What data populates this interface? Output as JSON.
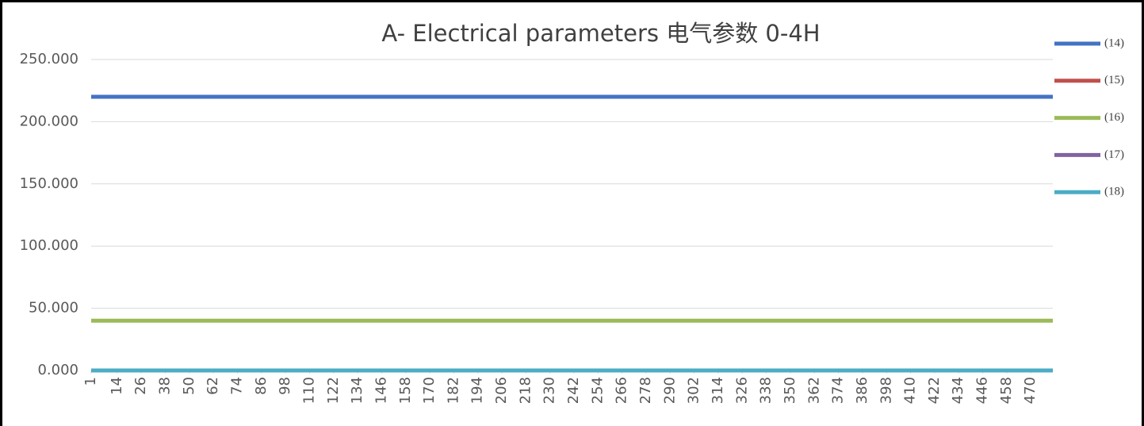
{
  "chart_data": {
    "type": "line",
    "title": "A- Electrical parameters 电气参数 0-4H",
    "x": [
      1,
      481
    ],
    "series": [
      {
        "name": "(14)",
        "color": "#4472c4",
        "values": [
          220,
          220
        ]
      },
      {
        "name": "(15)",
        "color": "#c0504d",
        "values": [
          0,
          0
        ]
      },
      {
        "name": "(16)",
        "color": "#9bbb59",
        "values": [
          40,
          40
        ]
      },
      {
        "name": "(17)",
        "color": "#8064a2",
        "values": [
          0,
          0
        ]
      },
      {
        "name": "(18)",
        "color": "#4bacc6",
        "values": [
          0,
          0
        ]
      }
    ],
    "xlim": [
      1,
      481
    ],
    "xticks": [
      1,
      14,
      26,
      38,
      50,
      62,
      74,
      86,
      98,
      110,
      122,
      134,
      146,
      158,
      170,
      182,
      194,
      206,
      218,
      230,
      242,
      254,
      266,
      278,
      290,
      302,
      314,
      326,
      338,
      350,
      362,
      374,
      386,
      398,
      410,
      422,
      434,
      446,
      458,
      470
    ],
    "ylim": [
      0,
      250
    ],
    "yticks": [
      {
        "value": 0,
        "label": "0.000"
      },
      {
        "value": 50,
        "label": "50.000"
      },
      {
        "value": 100,
        "label": "100.000"
      },
      {
        "value": 150,
        "label": "150.000"
      },
      {
        "value": 200,
        "label": "200.000"
      },
      {
        "value": 250,
        "label": "250.000"
      }
    ],
    "grid": true,
    "legend": "right"
  }
}
